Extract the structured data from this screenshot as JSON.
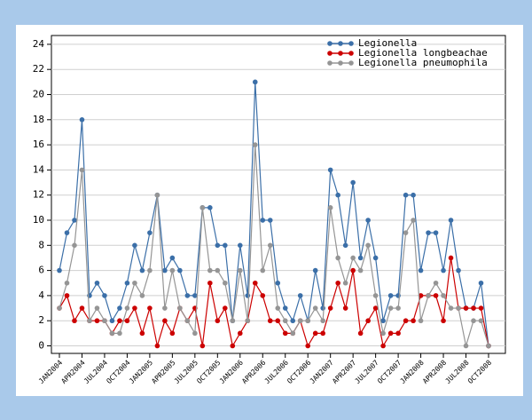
{
  "chart_data": {
    "type": "line",
    "categories": [
      "JAN2004",
      null,
      null,
      "APR2004",
      null,
      null,
      "JUL2004",
      null,
      null,
      "OCT2004",
      null,
      null,
      "JAN2005",
      null,
      null,
      "APR2005",
      null,
      null,
      "JUL2005",
      null,
      null,
      "OCT2005",
      null,
      null,
      "JAN2006",
      null,
      null,
      "APR2006",
      null,
      null,
      "JUL2006",
      null,
      null,
      "OCT2006",
      null,
      null,
      "JAN2007",
      null,
      null,
      "APR2007",
      null,
      null,
      "JUL2007",
      null,
      null,
      "OCT2007",
      null,
      null,
      "JAN2008",
      null,
      null,
      "APR2008",
      null,
      null,
      "JUL2008",
      null,
      null,
      "OCT2008"
    ],
    "series": [
      {
        "name": "Legionella",
        "color": "#3b6fa8",
        "values": [
          6,
          9,
          10,
          18,
          4,
          5,
          4,
          2,
          3,
          5,
          8,
          6,
          9,
          12,
          6,
          7,
          6,
          4,
          4,
          11,
          11,
          8,
          8,
          2,
          8,
          4,
          21,
          10,
          10,
          5,
          3,
          2,
          4,
          2,
          6,
          3,
          14,
          12,
          8,
          13,
          7,
          10,
          7,
          2,
          4,
          4,
          12,
          12,
          6,
          9,
          9,
          6,
          10,
          6,
          3,
          3,
          5,
          0
        ]
      },
      {
        "name": "Legionella longbeachae",
        "color": "#cc0000",
        "values": [
          3,
          4,
          2,
          3,
          2,
          2,
          2,
          1,
          2,
          2,
          3,
          1,
          3,
          0,
          2,
          1,
          3,
          2,
          3,
          0,
          5,
          2,
          3,
          0,
          1,
          2,
          5,
          4,
          2,
          2,
          1,
          1,
          2,
          0,
          1,
          1,
          3,
          5,
          3,
          6,
          1,
          2,
          3,
          0,
          1,
          1,
          2,
          2,
          4,
          4,
          4,
          2,
          7,
          3,
          3,
          3,
          3,
          0
        ]
      },
      {
        "name": "Legionella pneumophila",
        "color": "#959595",
        "values": [
          3,
          5,
          8,
          14,
          2,
          3,
          2,
          1,
          1,
          3,
          5,
          4,
          6,
          12,
          3,
          6,
          3,
          2,
          1,
          11,
          6,
          6,
          5,
          2,
          6,
          2,
          16,
          6,
          8,
          3,
          2,
          1,
          2,
          2,
          3,
          2,
          11,
          7,
          5,
          7,
          6,
          8,
          4,
          1,
          3,
          3,
          9,
          10,
          2,
          4,
          5,
          4,
          3,
          3,
          0,
          2,
          2,
          0
        ]
      }
    ],
    "ylim": [
      -0.6,
      24.7
    ],
    "yticks": [
      0,
      2,
      4,
      6,
      8,
      10,
      12,
      14,
      16,
      18,
      20,
      22,
      24
    ],
    "grid": true,
    "legend": "top-right"
  }
}
